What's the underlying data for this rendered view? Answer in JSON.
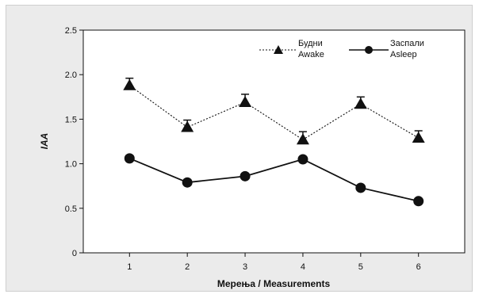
{
  "chart_data": {
    "type": "line",
    "xlabel": "Мерења / Measurements",
    "ylabel": "IAA",
    "x": [
      1,
      2,
      3,
      4,
      5,
      6
    ],
    "ylim": [
      0,
      2.5
    ],
    "yticks": [
      "0",
      "0.5",
      "1.0",
      "1.5",
      "2.0",
      "2.5"
    ],
    "yticks_values": [
      0,
      0.5,
      1.0,
      1.5,
      2.0,
      2.5
    ],
    "legend_position": "top-right",
    "series": [
      {
        "name_line1": "Будни",
        "name_line2": "Awake",
        "marker": "triangle",
        "line_style": "dotted",
        "values": [
          1.88,
          1.41,
          1.69,
          1.27,
          1.67,
          1.29
        ],
        "error_upper": [
          0.08,
          0.08,
          0.09,
          0.09,
          0.08,
          0.08
        ]
      },
      {
        "name_line1": "Заспали",
        "name_line2": "Asleep",
        "marker": "circle",
        "line_style": "solid",
        "values": [
          1.06,
          0.79,
          0.86,
          1.05,
          0.73,
          0.58
        ],
        "error_upper": [
          0.03,
          0.03,
          0.03,
          0.03,
          0.03,
          0.03
        ]
      }
    ]
  },
  "colors": {
    "frame_background": "#ebebeb",
    "plot_background": "#ffffff",
    "ink": "#111111"
  }
}
